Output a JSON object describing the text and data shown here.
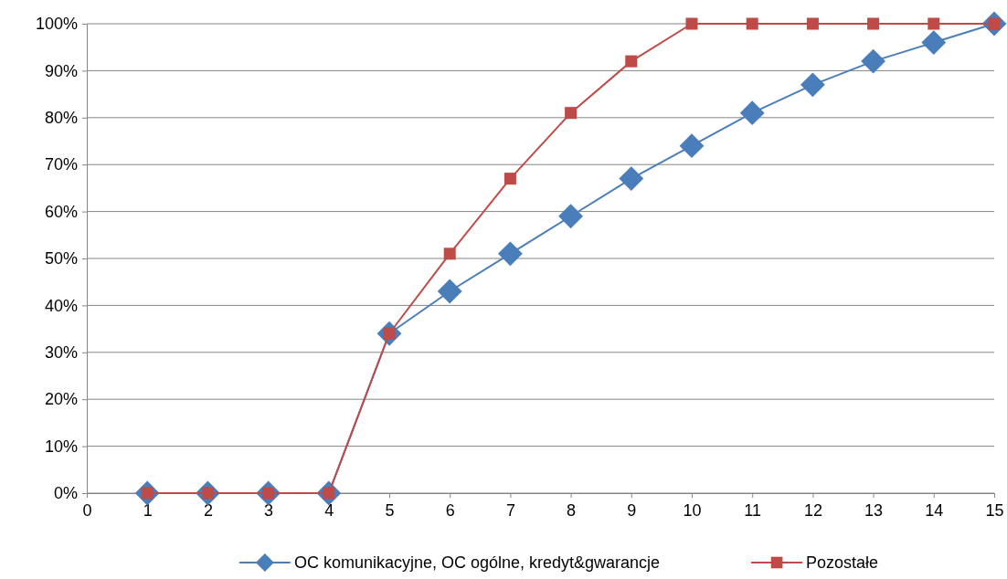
{
  "chart_data": {
    "type": "line",
    "x": [
      1,
      2,
      3,
      4,
      5,
      6,
      7,
      8,
      9,
      10,
      11,
      12,
      13,
      14,
      15
    ],
    "series": [
      {
        "name": "OC komunikacyjne, OC ogólne, kredyt&gwarancje",
        "color": "#4a7ebb",
        "marker": "diamond",
        "values": [
          0,
          0,
          0,
          0,
          34,
          43,
          51,
          59,
          67,
          74,
          81,
          87,
          92,
          96,
          100
        ]
      },
      {
        "name": "Pozostałe",
        "color": "#be4b48",
        "marker": "square",
        "values": [
          0,
          0,
          0,
          0,
          34,
          51,
          67,
          81,
          92,
          100,
          100,
          100,
          100,
          100,
          100
        ]
      }
    ],
    "xlim": [
      0,
      15
    ],
    "xticks": [
      0,
      1,
      2,
      3,
      4,
      5,
      6,
      7,
      8,
      9,
      10,
      11,
      12,
      13,
      14,
      15
    ],
    "ylim": [
      0,
      100
    ],
    "yticks": [
      {
        "value": 0,
        "label": "0%"
      },
      {
        "value": 10,
        "label": "10%"
      },
      {
        "value": 20,
        "label": "20%"
      },
      {
        "value": 30,
        "label": "30%"
      },
      {
        "value": 40,
        "label": "40%"
      },
      {
        "value": 50,
        "label": "50%"
      },
      {
        "value": 60,
        "label": "60%"
      },
      {
        "value": 70,
        "label": "70%"
      },
      {
        "value": 80,
        "label": "80%"
      },
      {
        "value": 90,
        "label": "90%"
      },
      {
        "value": 100,
        "label": "100%"
      }
    ],
    "grid": "y",
    "legend": "bottom",
    "line_style": "solid"
  }
}
